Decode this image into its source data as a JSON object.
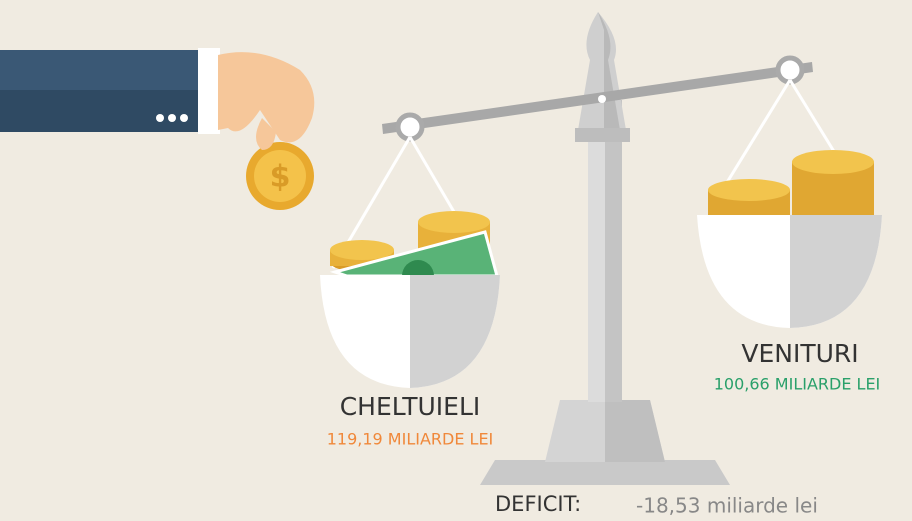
{
  "expenses": {
    "label": "CHELTUIELI",
    "amount": "119,19 MILIARDE LEI"
  },
  "revenues": {
    "label": "VENITURI",
    "amount": "100,66 MILIARDE LEI"
  },
  "deficit": {
    "label": "DEFICIT:",
    "amount": "-18,53 miliarde lei"
  }
}
